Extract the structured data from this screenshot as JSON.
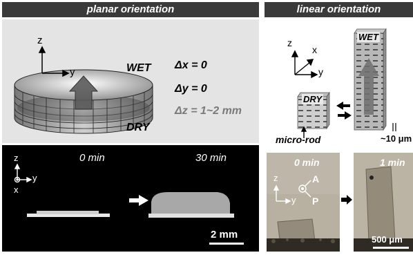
{
  "left_panel": {
    "header": "planar orientation",
    "axes": {
      "z": "z",
      "y": "y"
    },
    "wet_label": "WET",
    "dry_label": "DRY",
    "equations": {
      "dx": "Δx = 0",
      "dy": "Δy = 0",
      "dz": "Δz = 1~2 mm"
    },
    "photo": {
      "axes": {
        "z": "z",
        "y": "y",
        "x": "x"
      },
      "time_start": "0 min",
      "time_end": "30 min",
      "scale_bar": "2 mm"
    }
  },
  "right_panel": {
    "header": "linear orientation",
    "axes": {
      "z": "z",
      "x": "x",
      "y": "y"
    },
    "dry_label": "DRY",
    "wet_label": "WET",
    "micro_rod_label": "micro-rod",
    "gap_label": "~10 μm",
    "photo": {
      "time_start": "0 min",
      "time_end": "1 min",
      "axes": {
        "z": "z",
        "y": "y",
        "A": "A",
        "P": "P"
      },
      "scale_bar": "500 μm"
    }
  },
  "colors": {
    "header_bg": "#3a3a3a",
    "panel_bg": "#e4e4e4",
    "photo_bg": "#000000"
  }
}
